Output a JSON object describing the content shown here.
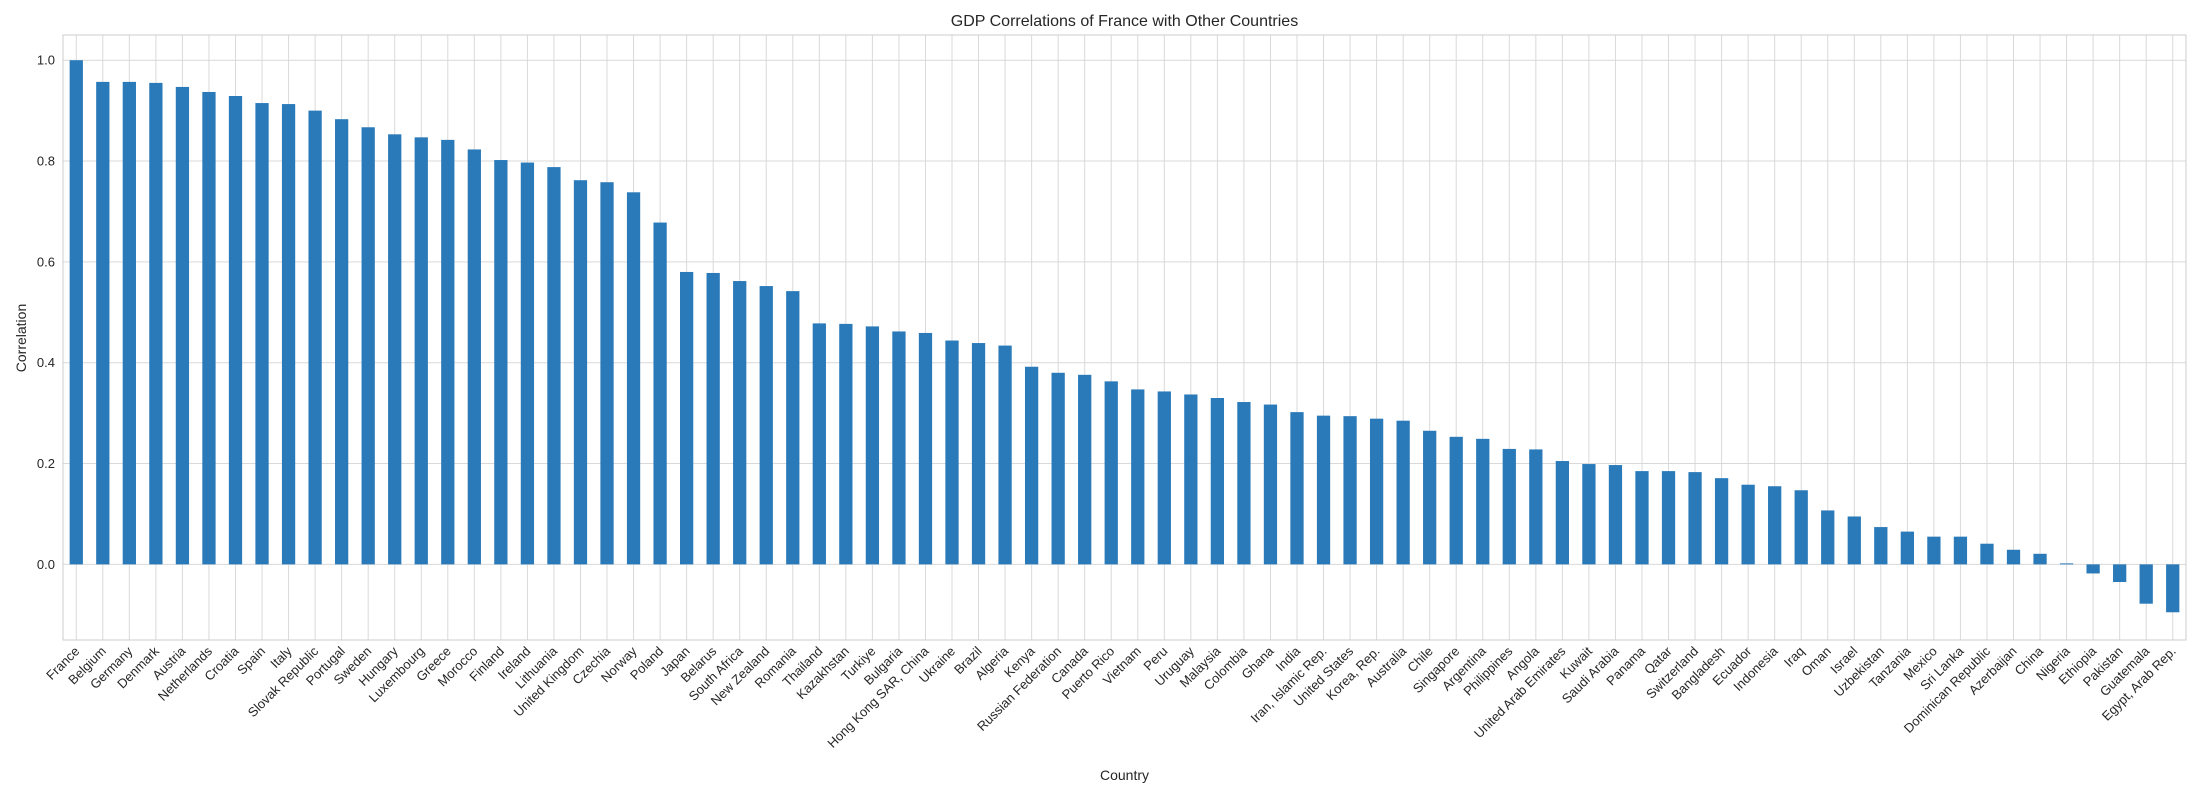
{
  "chart_data": {
    "type": "bar",
    "title": "GDP Correlations of France with Other Countries",
    "xlabel": "Country",
    "ylabel": "Correlation",
    "ylim": [
      -0.15,
      1.05
    ],
    "yticks": [
      "0.0",
      "0.2",
      "0.4",
      "0.6",
      "0.8",
      "1.0"
    ],
    "grid": true,
    "bar_color": "#2a7ab9",
    "categories": [
      "France",
      "Belgium",
      "Germany",
      "Denmark",
      "Austria",
      "Netherlands",
      "Croatia",
      "Spain",
      "Italy",
      "Slovak Republic",
      "Portugal",
      "Sweden",
      "Hungary",
      "Luxembourg",
      "Greece",
      "Morocco",
      "Finland",
      "Ireland",
      "Lithuania",
      "United Kingdom",
      "Czechia",
      "Norway",
      "Poland",
      "Japan",
      "Belarus",
      "South Africa",
      "New Zealand",
      "Romania",
      "Thailand",
      "Kazakhstan",
      "Turkiye",
      "Bulgaria",
      "Hong Kong SAR, China",
      "Ukraine",
      "Brazil",
      "Algeria",
      "Kenya",
      "Russian Federation",
      "Canada",
      "Puerto Rico",
      "Vietnam",
      "Peru",
      "Uruguay",
      "Malaysia",
      "Colombia",
      "Ghana",
      "India",
      "Iran, Islamic Rep.",
      "United States",
      "Korea, Rep.",
      "Australia",
      "Chile",
      "Singapore",
      "Argentina",
      "Philippines",
      "Angola",
      "United Arab Emirates",
      "Kuwait",
      "Saudi Arabia",
      "Panama",
      "Qatar",
      "Switzerland",
      "Bangladesh",
      "Ecuador",
      "Indonesia",
      "Iraq",
      "Oman",
      "Israel",
      "Uzbekistan",
      "Tanzania",
      "Mexico",
      "Sri Lanka",
      "Dominican Republic",
      "Azerbaijan",
      "China",
      "Nigeria",
      "Ethiopia",
      "Pakistan",
      "Guatemala",
      "Egypt, Arab Rep."
    ],
    "values": [
      1.0,
      0.957,
      0.957,
      0.955,
      0.947,
      0.937,
      0.929,
      0.915,
      0.913,
      0.9,
      0.883,
      0.867,
      0.853,
      0.847,
      0.842,
      0.823,
      0.802,
      0.797,
      0.788,
      0.762,
      0.758,
      0.738,
      0.678,
      0.58,
      0.578,
      0.562,
      0.552,
      0.542,
      0.478,
      0.477,
      0.472,
      0.462,
      0.459,
      0.444,
      0.439,
      0.434,
      0.392,
      0.38,
      0.376,
      0.363,
      0.347,
      0.343,
      0.337,
      0.33,
      0.322,
      0.317,
      0.302,
      0.295,
      0.294,
      0.289,
      0.285,
      0.265,
      0.253,
      0.249,
      0.229,
      0.228,
      0.205,
      0.199,
      0.197,
      0.185,
      0.185,
      0.183,
      0.171,
      0.158,
      0.155,
      0.147,
      0.107,
      0.095,
      0.074,
      0.065,
      0.055,
      0.055,
      0.041,
      0.029,
      0.021,
      0.002,
      -0.018,
      -0.035,
      -0.078,
      -0.095
    ]
  }
}
